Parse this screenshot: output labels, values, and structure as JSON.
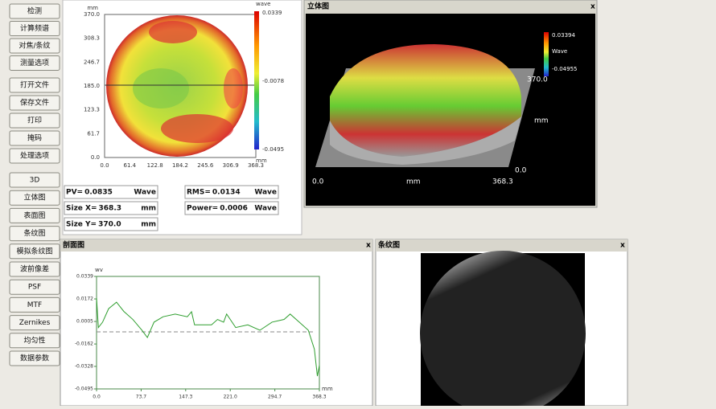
{
  "buttons": [
    [
      "检测",
      "计算频谱",
      "对焦/条纹",
      "测量选项"
    ],
    [
      "打开文件",
      "保存文件",
      "打印",
      "掩码",
      "处理选项"
    ],
    [
      "3D",
      "立体图",
      "表面图",
      "条纹图",
      "模拟条纹图",
      "波前像差",
      "PSF",
      "MTF",
      "Zernikes",
      "均匀性",
      "数据参数"
    ]
  ],
  "contour_map": {
    "x_unit": "mm",
    "y_unit": "mm",
    "colorbar_unit": "wave",
    "colorbar_labels": [
      "0.0339",
      "-0.0078",
      "-0.0495"
    ],
    "yticks": [
      "370.0",
      "308.3",
      "246.7",
      "185.0",
      "123.3",
      "61.7",
      "0.0"
    ],
    "xticks": [
      "0.0",
      "61.4",
      "122.8",
      "184.2",
      "245.6",
      "306.9",
      "368.3"
    ]
  },
  "stats": [
    {
      "label": "PV=",
      "value": "0.0835",
      "unit": "Wave"
    },
    {
      "label": "Size X=",
      "value": "368.3",
      "unit": "mm"
    },
    {
      "label": "Size Y=",
      "value": "370.0",
      "unit": "mm"
    },
    {
      "label": "RMS=",
      "value": "0.0134",
      "unit": "Wave"
    },
    {
      "label": "Power=",
      "value": "0.0006",
      "unit": "Wave"
    }
  ],
  "view_3d": {
    "title": "立体图",
    "close": "x",
    "colorbar_labels": [
      "0.03394",
      "Wave",
      "-0.04955"
    ],
    "y_axis": [
      "370.0",
      "mm",
      "0.0"
    ],
    "x_axis": [
      "0.0",
      "mm",
      "368.3"
    ]
  },
  "profile": {
    "title": "剖面图",
    "close": "x",
    "y_unit": "wv",
    "x_unit": "mm",
    "xlim": [
      0,
      368.3
    ],
    "ylim": [
      -0.0495,
      0.0339
    ],
    "yticks": [
      0.0339,
      0.0172,
      0.0005,
      -0.0162,
      -0.0328,
      -0.0495
    ],
    "xticks": [
      {
        "value": 0,
        "label": "0.0"
      },
      73.7,
      147.3,
      {
        "value": 221,
        "label": "221.0"
      },
      294.7,
      368.3
    ],
    "x": [
      0,
      3,
      10,
      20,
      33,
      45,
      60,
      75,
      84,
      95,
      110,
      130,
      150,
      157,
      162,
      170,
      190,
      200,
      210,
      215,
      230,
      250,
      270,
      290,
      310,
      320,
      335,
      350,
      360,
      365,
      368.3
    ],
    "values": [
      0.018,
      -0.004,
      0.0,
      0.01,
      0.0148,
      0.008,
      0.002,
      -0.006,
      -0.0114,
      0.0,
      0.004,
      0.006,
      0.004,
      0.0077,
      -0.002,
      -0.002,
      -0.002,
      0.002,
      0.0,
      0.006,
      -0.004,
      -0.002,
      -0.006,
      0.0,
      0.002,
      0.006,
      0.0,
      -0.006,
      -0.02,
      -0.04,
      -0.032
    ],
    "reference": -0.0072,
    "color": "#2e9e2e"
  },
  "fringe": {
    "title": "条纹图",
    "close": "x"
  }
}
